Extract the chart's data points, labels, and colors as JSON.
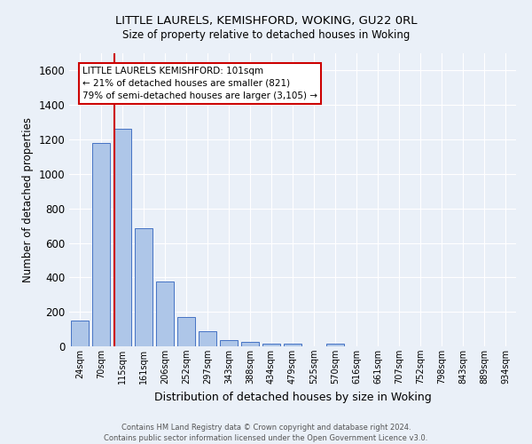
{
  "title": "LITTLE LAURELS, KEMISHFORD, WOKING, GU22 0RL",
  "subtitle": "Size of property relative to detached houses in Woking",
  "xlabel": "Distribution of detached houses by size in Woking",
  "ylabel": "Number of detached properties",
  "footnote1": "Contains HM Land Registry data © Crown copyright and database right 2024.",
  "footnote2": "Contains public sector information licensed under the Open Government Licence v3.0.",
  "bar_labels": [
    "24sqm",
    "70sqm",
    "115sqm",
    "161sqm",
    "206sqm",
    "252sqm",
    "297sqm",
    "343sqm",
    "388sqm",
    "434sqm",
    "479sqm",
    "525sqm",
    "570sqm",
    "616sqm",
    "661sqm",
    "707sqm",
    "752sqm",
    "798sqm",
    "843sqm",
    "889sqm",
    "934sqm"
  ],
  "bar_values": [
    150,
    1180,
    1260,
    685,
    375,
    170,
    90,
    38,
    28,
    18,
    15,
    0,
    15,
    0,
    0,
    0,
    0,
    0,
    0,
    0,
    0
  ],
  "bar_color": "#aec6e8",
  "bar_edge_color": "#4472c4",
  "background_color": "#eaf0f8",
  "grid_color": "#ffffff",
  "annotation_text": "LITTLE LAURELS KEMISHFORD: 101sqm\n← 21% of detached houses are smaller (821)\n79% of semi-detached houses are larger (3,105) →",
  "annotation_box_color": "#ffffff",
  "annotation_box_edge_color": "#cc0000",
  "red_line_color": "#cc0000",
  "red_line_x": 1.62,
  "ylim": [
    0,
    1700
  ],
  "yticks": [
    0,
    200,
    400,
    600,
    800,
    1000,
    1200,
    1400,
    1600
  ]
}
